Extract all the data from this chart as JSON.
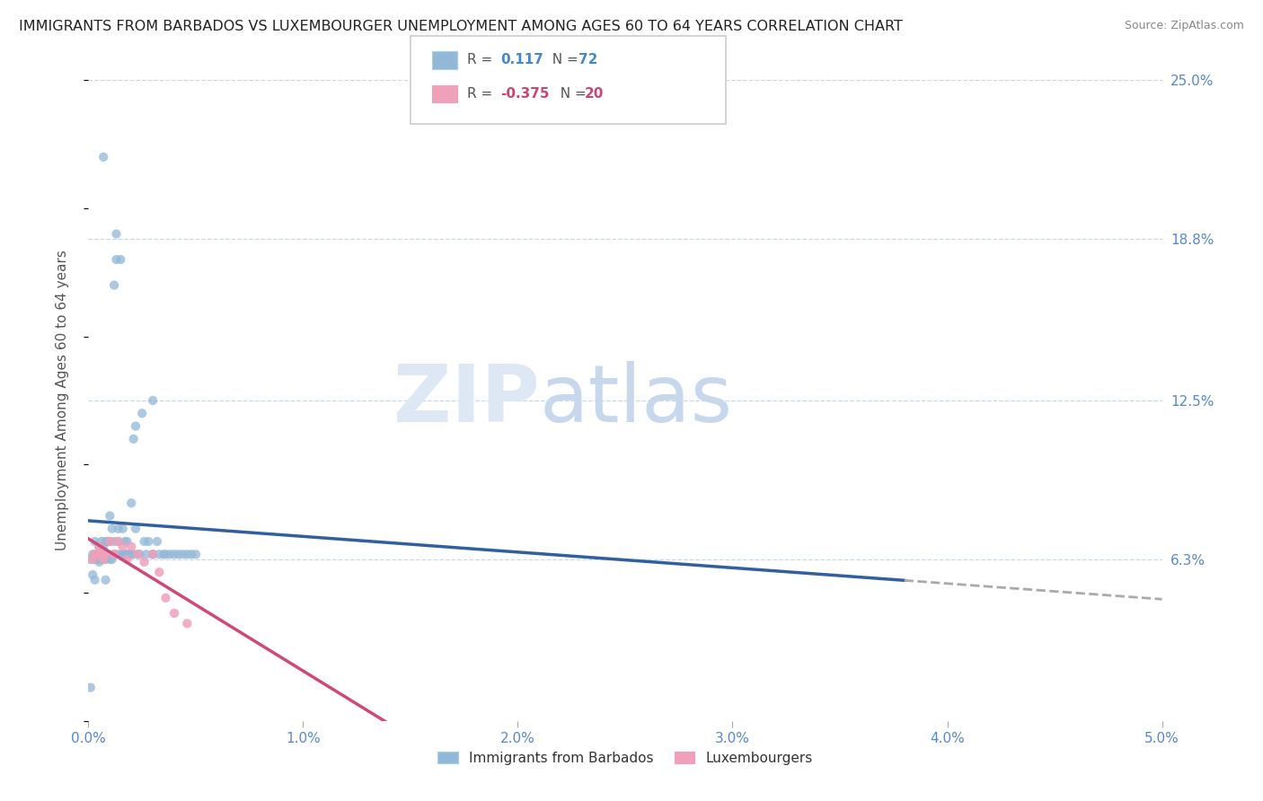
{
  "title": "IMMIGRANTS FROM BARBADOS VS LUXEMBOURGER UNEMPLOYMENT AMONG AGES 60 TO 64 YEARS CORRELATION CHART",
  "source": "Source: ZipAtlas.com",
  "ylabel": "Unemployment Among Ages 60 to 64 years",
  "xlim": [
    0.0,
    0.05
  ],
  "ylim": [
    0.0,
    0.25
  ],
  "xtick_vals": [
    0.0,
    0.01,
    0.02,
    0.03,
    0.04,
    0.05
  ],
  "xtick_labels": [
    "0.0%",
    "1.0%",
    "2.0%",
    "3.0%",
    "4.0%",
    "5.0%"
  ],
  "ytick_vals": [
    0.0,
    0.063,
    0.125,
    0.188,
    0.25
  ],
  "ytick_labels": [
    "",
    "6.3%",
    "12.5%",
    "18.8%",
    "25.0%"
  ],
  "blue_R": 0.117,
  "blue_N": 72,
  "pink_R": -0.375,
  "pink_N": 20,
  "blue_color": "#92b8d8",
  "pink_color": "#f0a0b8",
  "blue_line_color": "#3060a0",
  "pink_line_color": "#d04878",
  "dash_color": "#aaaaaa",
  "legend_label_blue": "Immigrants from Barbados",
  "legend_label_pink": "Luxembourgers",
  "grid_color": "#c8d8e8",
  "blue_x": [
    0.0001,
    0.0002,
    0.0002,
    0.0003,
    0.0003,
    0.0003,
    0.0003,
    0.0004,
    0.0004,
    0.0005,
    0.0005,
    0.0005,
    0.0006,
    0.0006,
    0.0006,
    0.0007,
    0.0007,
    0.0007,
    0.0008,
    0.0008,
    0.0008,
    0.0009,
    0.0009,
    0.001,
    0.001,
    0.001,
    0.0011,
    0.0011,
    0.0012,
    0.0012,
    0.0012,
    0.0013,
    0.0013,
    0.0013,
    0.0014,
    0.0014,
    0.0015,
    0.0015,
    0.0016,
    0.0016,
    0.0017,
    0.0017,
    0.0018,
    0.0018,
    0.0019,
    0.002,
    0.002,
    0.0021,
    0.0021,
    0.0022,
    0.0022,
    0.0023,
    0.0024,
    0.0025,
    0.0026,
    0.0027,
    0.0028,
    0.003,
    0.003,
    0.0032,
    0.0033,
    0.0035,
    0.0036,
    0.0038,
    0.004,
    0.0042,
    0.0044,
    0.0046,
    0.0048,
    0.005,
    0.003,
    0.0001
  ],
  "blue_y": [
    0.063,
    0.057,
    0.065,
    0.055,
    0.063,
    0.065,
    0.07,
    0.063,
    0.065,
    0.062,
    0.065,
    0.068,
    0.063,
    0.065,
    0.07,
    0.063,
    0.068,
    0.22,
    0.055,
    0.063,
    0.07,
    0.065,
    0.07,
    0.063,
    0.07,
    0.08,
    0.063,
    0.075,
    0.065,
    0.07,
    0.17,
    0.18,
    0.19,
    0.065,
    0.07,
    0.075,
    0.065,
    0.18,
    0.065,
    0.075,
    0.065,
    0.07,
    0.065,
    0.07,
    0.065,
    0.065,
    0.085,
    0.065,
    0.11,
    0.075,
    0.115,
    0.065,
    0.065,
    0.12,
    0.07,
    0.065,
    0.07,
    0.125,
    0.065,
    0.07,
    0.065,
    0.065,
    0.065,
    0.065,
    0.065,
    0.065,
    0.065,
    0.065,
    0.065,
    0.065,
    0.065,
    0.013
  ],
  "pink_x": [
    0.0002,
    0.0003,
    0.0004,
    0.0005,
    0.0006,
    0.0007,
    0.0008,
    0.001,
    0.0012,
    0.0014,
    0.0016,
    0.0018,
    0.002,
    0.0023,
    0.0026,
    0.003,
    0.0033,
    0.0036,
    0.004,
    0.0046
  ],
  "pink_y": [
    0.063,
    0.065,
    0.065,
    0.068,
    0.065,
    0.063,
    0.065,
    0.07,
    0.065,
    0.07,
    0.068,
    0.063,
    0.068,
    0.065,
    0.062,
    0.065,
    0.058,
    0.048,
    0.042,
    0.038
  ]
}
